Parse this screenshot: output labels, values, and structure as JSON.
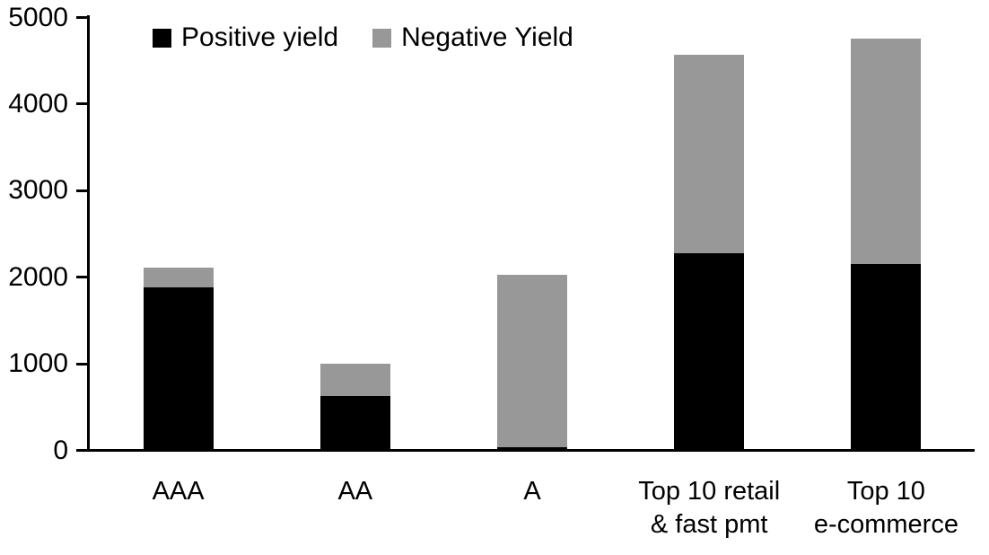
{
  "chart_data": {
    "type": "bar",
    "stacked": true,
    "title": "",
    "xlabel": "",
    "ylabel": "",
    "categories": [
      "AAA",
      "AA",
      "A",
      "Top 10 retail\n& fast pmt",
      "Top 10\ne-commerce"
    ],
    "series": [
      {
        "name": "Positive yield",
        "color": "#000000",
        "values": [
          1880,
          625,
          40,
          2280,
          2150
        ]
      },
      {
        "name": "Negative Yield",
        "color": "#989898",
        "values": [
          230,
          375,
          1990,
          2290,
          2610
        ]
      }
    ],
    "totals": [
      2110,
      1000,
      2030,
      4570,
      4760
    ],
    "ylim": [
      0,
      5000
    ],
    "yticks": [
      0,
      1000,
      2000,
      3000,
      4000,
      5000
    ],
    "grid": false,
    "legend_position": "top-left-inside",
    "colors": {
      "background": "#ffffff",
      "axis": "#000000",
      "positive": "#000000",
      "negative": "#989898"
    }
  }
}
